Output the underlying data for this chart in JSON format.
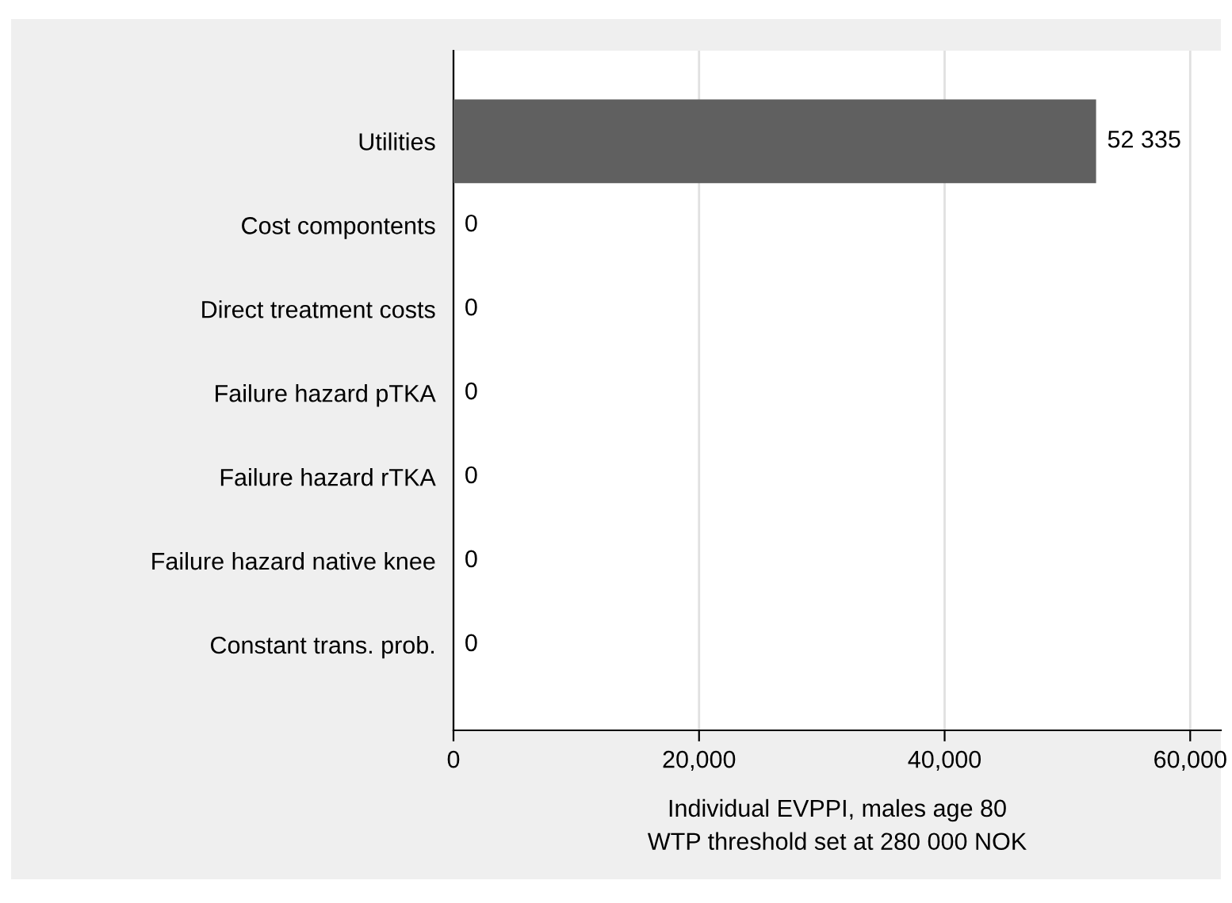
{
  "chart_data": {
    "type": "bar",
    "orientation": "horizontal",
    "categories": [
      "Utilities",
      "Cost compontents",
      "Direct treatment costs",
      "Failure hazard pTKA",
      "Failure hazard rTKA",
      "Failure hazard native knee",
      "Constant trans. prob."
    ],
    "values": [
      52335,
      0,
      0,
      0,
      0,
      0,
      0
    ],
    "value_labels": [
      "52 335",
      "0",
      "0",
      "0",
      "0",
      "0",
      "0"
    ],
    "color": "#606060",
    "xlim": [
      0,
      62500
    ],
    "xticks": [
      {
        "value": 0,
        "label": "0"
      },
      {
        "value": 20000,
        "label": "20,000"
      },
      {
        "value": 40000,
        "label": "40,000"
      },
      {
        "value": 60000,
        "label": "60,000"
      }
    ],
    "xlabel": "Individual EVPPI, males age 80\nWTP threshold set at 280 000 NOK",
    "grid": "x"
  }
}
